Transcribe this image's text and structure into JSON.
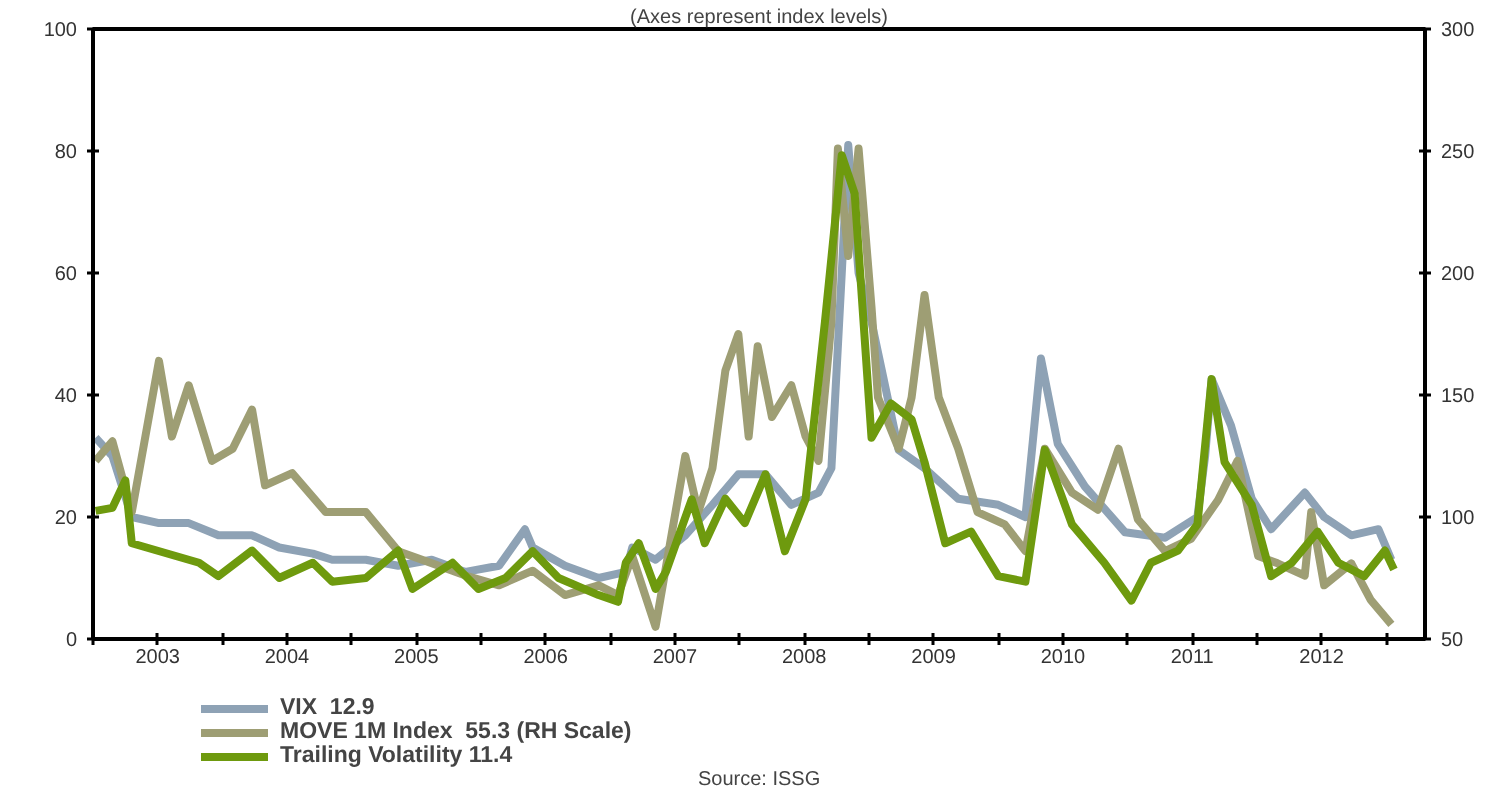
{
  "chart_data": {
    "type": "line",
    "subtitle": "(Axes represent index levels)",
    "annotations": [
      "Source: ISSG"
    ],
    "xlim": [
      2003,
      2013.3
    ],
    "xticks": [
      {
        "value": 2003,
        "label": null
      },
      {
        "value": 2003.5,
        "label": "2003"
      },
      {
        "value": 2004,
        "label": null
      },
      {
        "value": 2004.5,
        "label": "2004"
      },
      {
        "value": 2005,
        "label": null
      },
      {
        "value": 2005.5,
        "label": "2005"
      },
      {
        "value": 2006,
        "label": null
      },
      {
        "value": 2006.5,
        "label": "2006"
      },
      {
        "value": 2007,
        "label": null
      },
      {
        "value": 2007.5,
        "label": "2007"
      },
      {
        "value": 2008,
        "label": null
      },
      {
        "value": 2008.5,
        "label": "2008"
      },
      {
        "value": 2009,
        "label": null
      },
      {
        "value": 2009.5,
        "label": "2009"
      },
      {
        "value": 2010,
        "label": null
      },
      {
        "value": 2010.5,
        "label": "2010"
      },
      {
        "value": 2011,
        "label": null
      },
      {
        "value": 2011.5,
        "label": "2011"
      },
      {
        "value": 2012,
        "label": null
      },
      {
        "value": 2012.5,
        "label": "2012"
      },
      {
        "value": 2013,
        "label": null
      }
    ],
    "ylim": [
      0,
      100
    ],
    "yticks": [
      0,
      20,
      40,
      60,
      80,
      100
    ],
    "y2lim": [
      50,
      300
    ],
    "y2ticks": [
      50,
      100,
      150,
      200,
      250,
      300
    ],
    "grid": false,
    "legend": "bottom",
    "line_style": "solid",
    "series": [
      {
        "name": "VIX  12.9",
        "color": "#8ea2b5",
        "x": [
          2003.02,
          2003.15,
          2003.3,
          2003.51,
          2003.74,
          2003.97,
          2004.23,
          2004.44,
          2004.7,
          2004.85,
          2005.11,
          2005.36,
          2005.62,
          2005.88,
          2006.14,
          2006.34,
          2006.4,
          2006.65,
          2006.91,
          2007.12,
          2007.17,
          2007.35,
          2007.58,
          2007.79,
          2007.99,
          2008.2,
          2008.4,
          2008.61,
          2008.71,
          2008.79,
          2008.84,
          2008.92,
          2009.02,
          2009.23,
          2009.43,
          2009.69,
          2010.0,
          2010.21,
          2010.33,
          2010.46,
          2010.67,
          2010.98,
          2011.29,
          2011.54,
          2011.6,
          2011.65,
          2011.8,
          2011.96,
          2012.11,
          2012.37,
          2012.52,
          2012.73,
          2012.94,
          2013.04
        ],
        "values": [
          33,
          30,
          20,
          19,
          19,
          17,
          17,
          15,
          14,
          13,
          13,
          12,
          13,
          11,
          12,
          18,
          15,
          12,
          10,
          11,
          15,
          13,
          17,
          22,
          27,
          27,
          22,
          24,
          28,
          60,
          81,
          60,
          52,
          31,
          28,
          23,
          22,
          20,
          46,
          32,
          25,
          17.5,
          16.6,
          20,
          30,
          42.6,
          35,
          23,
          18,
          24,
          20,
          17,
          18,
          13
        ]
      },
      {
        "name": "MOVE 1M Index  55.3 (RH Scale)",
        "color": "#9e9e74",
        "axis": "y2",
        "x": [
          2003.02,
          2003.15,
          2003.3,
          2003.51,
          2003.61,
          2003.74,
          2003.92,
          2004.08,
          2004.23,
          2004.33,
          2004.54,
          2004.8,
          2005.11,
          2005.36,
          2005.62,
          2005.88,
          2006.14,
          2006.4,
          2006.65,
          2006.91,
          2007.06,
          2007.17,
          2007.35,
          2007.58,
          2007.68,
          2007.79,
          2007.89,
          2007.99,
          2008.07,
          2008.14,
          2008.25,
          2008.4,
          2008.51,
          2008.61,
          2008.71,
          2008.76,
          2008.84,
          2008.92,
          2009.02,
          2009.07,
          2009.23,
          2009.33,
          2009.43,
          2009.54,
          2009.69,
          2009.84,
          2010.05,
          2010.21,
          2010.36,
          2010.57,
          2010.77,
          2010.93,
          2011.08,
          2011.29,
          2011.49,
          2011.7,
          2011.85,
          2012.01,
          2012.16,
          2012.37,
          2012.42,
          2012.52,
          2012.73,
          2012.88,
          2013.04
        ],
        "values": [
          123,
          131,
          102,
          164,
          133,
          154,
          123,
          128,
          144,
          113,
          118,
          102,
          102,
          86,
          81,
          76,
          72,
          78,
          68,
          72,
          68,
          84,
          55,
          125,
          102,
          120,
          160,
          175,
          133,
          170,
          141,
          154,
          133,
          123,
          180,
          251,
          207,
          251,
          186,
          149,
          128,
          149,
          191,
          149,
          128,
          102,
          97,
          86,
          128,
          110,
          103,
          128,
          99,
          86,
          91,
          107,
          123,
          84,
          81,
          76,
          102,
          72,
          81,
          66,
          56
        ]
      },
      {
        "name": "Trailing Volatility 11.4",
        "color": "#6e9a0e",
        "x": [
          2003.02,
          2003.15,
          2003.25,
          2003.3,
          2003.82,
          2003.97,
          2004.23,
          2004.44,
          2004.7,
          2004.85,
          2005.11,
          2005.36,
          2005.47,
          2005.78,
          2005.98,
          2006.19,
          2006.4,
          2006.6,
          2006.91,
          2007.06,
          2007.12,
          2007.22,
          2007.35,
          2007.43,
          2007.63,
          2007.73,
          2007.89,
          2008.04,
          2008.2,
          2008.35,
          2008.51,
          2008.66,
          2008.79,
          2008.89,
          2009.02,
          2009.17,
          2009.33,
          2009.43,
          2009.59,
          2009.79,
          2010.0,
          2010.21,
          2010.36,
          2010.57,
          2010.82,
          2011.03,
          2011.18,
          2011.39,
          2011.54,
          2011.65,
          2011.75,
          2011.96,
          2012.11,
          2012.27,
          2012.47,
          2012.63,
          2012.83,
          2012.99,
          2013.06
        ],
        "values": [
          21,
          21.5,
          26,
          15.7,
          12.5,
          10.3,
          14.5,
          10,
          12.5,
          9.4,
          10,
          14.5,
          8.2,
          12.5,
          8.2,
          10,
          14.4,
          10,
          7.2,
          6.1,
          12.5,
          15.7,
          8.2,
          11,
          22.9,
          15.7,
          23,
          19,
          27,
          14.4,
          22.9,
          52,
          79.3,
          73,
          33,
          38.6,
          36,
          29,
          15.7,
          17.6,
          10.3,
          9.4,
          31,
          18.8,
          12.5,
          6.3,
          12.5,
          14.5,
          18.8,
          42.6,
          29,
          22,
          10.3,
          12.5,
          17.6,
          12.5,
          10.3,
          14.5,
          11.4
        ]
      }
    ]
  }
}
